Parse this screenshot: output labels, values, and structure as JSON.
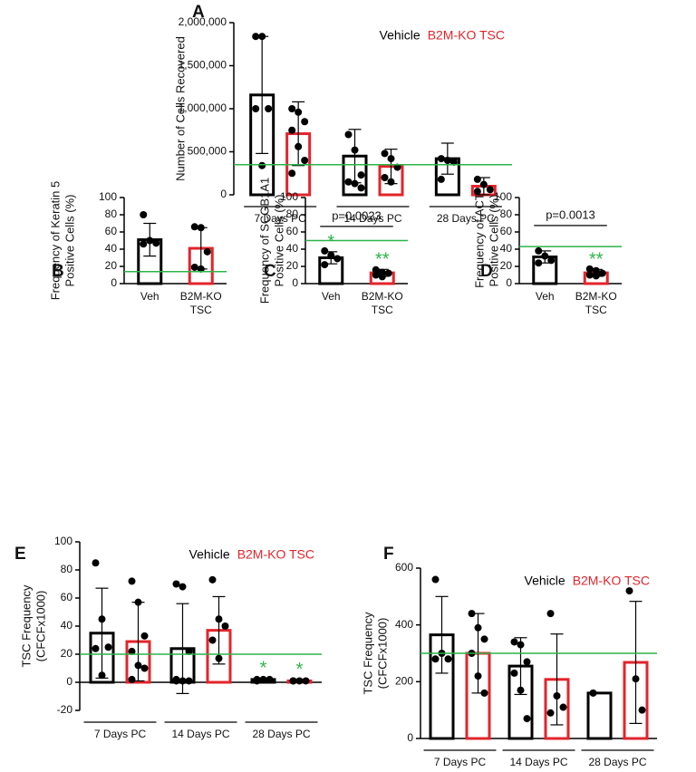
{
  "chart_data": [
    {
      "type": "grouped_bar",
      "letter": "A",
      "ylabel": [
        "Number of Cells Recovered"
      ],
      "categories": [
        "7 Days PC",
        "14 Days PC",
        "28 Days PC"
      ],
      "series": [
        {
          "name": "Vehicle",
          "color": "#000000",
          "values": [
            1160000,
            450000,
            420000
          ],
          "errors": [
            680000,
            310000,
            180000
          ],
          "points": [
            [
              1840000,
              1840000,
              1000000,
              1000000,
              340000
            ],
            [
              700000,
              520000,
              230000,
              150000,
              130000,
              80000
            ],
            [
              420000,
              400000,
              380000,
              180000
            ]
          ]
        },
        {
          "name": "B2M-KO TSC",
          "color": "#e3242b",
          "values": [
            710000,
            330000,
            100000
          ],
          "errors": [
            370000,
            200000,
            100000
          ],
          "points": [
            [
              1000000,
              960000,
              850000,
              750000,
              560000,
              400000,
              250000
            ],
            [
              480000,
              420000,
              320000,
              200000,
              150000
            ],
            [
              180000,
              120000,
              60000,
              40000
            ]
          ]
        }
      ],
      "ylim": [
        0,
        2000000
      ],
      "yticks": [
        0,
        {
          "value": 500000,
          "label": "500,000"
        },
        {
          "value": 1000000,
          "label": "1,000,000"
        },
        {
          "value": 1500000,
          "label": "1,500,000"
        },
        {
          "value": 2000000,
          "label": "2,000,000"
        }
      ],
      "refline": 350000,
      "refline_color": "#2db34a",
      "legend": "top-right"
    },
    {
      "type": "bar",
      "letter": "B",
      "ylabel": [
        "Frequency of Keratin 5",
        "Positive Cells (%)"
      ],
      "categories": [
        [
          "Veh"
        ],
        [
          "B2M-KO",
          "TSC"
        ]
      ],
      "colors": [
        "#000000",
        "#e3242b"
      ],
      "values": [
        51,
        41
      ],
      "errors": [
        19,
        24
      ],
      "points": [
        [
          80,
          50,
          47,
          46
        ],
        [
          66,
          65,
          37,
          19,
          17
        ]
      ],
      "ylim": [
        0,
        100
      ],
      "yticks": [
        0,
        20,
        40,
        60,
        80,
        100
      ],
      "refline": 14,
      "refline_color": "#2db34a"
    },
    {
      "type": "bar",
      "letter": "C",
      "ylabel": [
        "Frequency of SCGB1A1",
        "Positive Cells (%)"
      ],
      "categories": [
        [
          "Veh"
        ],
        [
          "B2M-KO",
          "TSC"
        ]
      ],
      "colors": [
        "#000000",
        "#e3242b"
      ],
      "values": [
        30,
        12.5
      ],
      "errors": [
        7,
        4
      ],
      "points": [
        [
          38,
          33,
          29,
          22
        ],
        [
          16,
          13,
          12,
          10,
          8
        ]
      ],
      "stars": [
        "*",
        "**"
      ],
      "pvalue": "p=0.0023",
      "ylim": [
        0,
        100
      ],
      "yticks": [
        0,
        20,
        40,
        60,
        80,
        100
      ],
      "refline": 50,
      "refline_color": "#2db34a"
    },
    {
      "type": "bar",
      "letter": "D",
      "ylabel": [
        "Frequency of ACT",
        "Positive Cells (%)"
      ],
      "categories": [
        [
          "Veh"
        ],
        [
          "B2M-KO",
          "TSC"
        ]
      ],
      "colors": [
        "#000000",
        "#e3242b"
      ],
      "values": [
        31,
        12.5
      ],
      "errors": [
        7,
        4
      ],
      "points": [
        [
          38,
          32,
          27,
          24
        ],
        [
          17,
          15,
          12,
          10,
          9
        ]
      ],
      "stars": [
        null,
        "**"
      ],
      "pvalue": "p=0.0013",
      "ylim": [
        0,
        100
      ],
      "yticks": [
        0,
        20,
        40,
        60,
        80,
        100
      ],
      "refline": 43,
      "refline_color": "#2db34a"
    },
    {
      "type": "grouped_bar",
      "letter": "E",
      "ylabel": [
        "TSC Frequency",
        "(CFCFx1000)"
      ],
      "categories": [
        "7 Days PC",
        "14 Days PC",
        "28 Days PC"
      ],
      "series": [
        {
          "name": "Vehicle",
          "color": "#000000",
          "values": [
            35,
            24,
            2
          ],
          "errors": [
            32,
            32,
            1
          ],
          "stars": [
            null,
            null,
            "*"
          ],
          "points": [
            [
              85,
              45,
              25,
              24,
              5
            ],
            [
              70,
              68,
              22,
              2,
              1,
              1,
              1
            ],
            [
              2,
              2,
              2,
              1
            ]
          ]
        },
        {
          "name": "B2M-KO TSC",
          "color": "#e3242b",
          "values": [
            29,
            37,
            1
          ],
          "errors": [
            28,
            24,
            1
          ],
          "stars": [
            null,
            null,
            "*"
          ],
          "points": [
            [
              72,
              57,
              33,
              22,
              12,
              10,
              2
            ],
            [
              73,
              45,
              40,
              30,
              17
            ],
            [
              1,
              1,
              1,
              1
            ]
          ]
        }
      ],
      "ylim": [
        -20,
        100
      ],
      "yticks": [
        -20,
        0,
        20,
        40,
        60,
        80,
        100
      ],
      "refline": 20,
      "refline_color": "#2db34a",
      "legend": "top-right"
    },
    {
      "type": "grouped_bar",
      "letter": "F",
      "ylabel": [
        "TSC Frequency",
        "(CFCFx1000)"
      ],
      "categories": [
        "7 Days PC",
        "14 Days PC",
        "28 Days PC"
      ],
      "series": [
        {
          "name": "Vehicle",
          "color": "#000000",
          "values": [
            365,
            255,
            160
          ],
          "errors": [
            135,
            100,
            0
          ],
          "points": [
            [
              560,
              300,
              280,
              280
            ],
            [
              340,
              330,
              270,
              230,
              170,
              70
            ],
            [
              160
            ]
          ]
        },
        {
          "name": "B2M-KO TSC",
          "color": "#e3242b",
          "values": [
            300,
            208,
            268
          ],
          "errors": [
            140,
            160,
            215
          ],
          "points": [
            [
              440,
              390,
              350,
              300,
              220,
              160
            ],
            [
              440,
              150,
              110,
              90
            ],
            [
              520,
              210,
              100
            ]
          ]
        }
      ],
      "ylim": [
        0,
        600
      ],
      "yticks": [
        0,
        200,
        400,
        600
      ],
      "refline": 300,
      "refline_color": "#2db34a",
      "legend": "top-right"
    }
  ]
}
